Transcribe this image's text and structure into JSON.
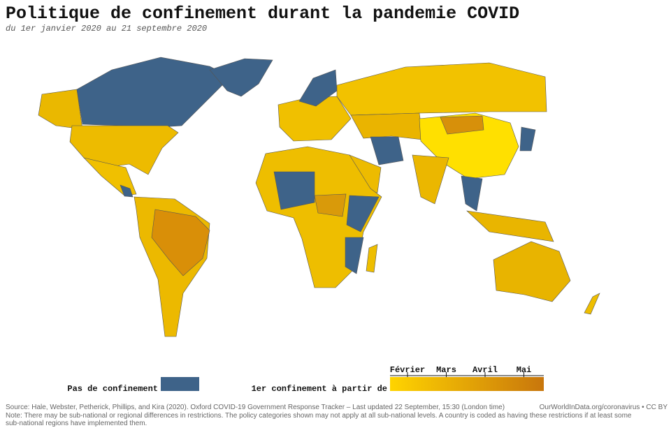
{
  "header": {
    "title": "Politique de confinement durant la pandemie COVID",
    "subtitle": "du 1er janvier 2020 au 21 septembre 2020"
  },
  "legend": {
    "no_lockdown": {
      "label": "Pas de confinement",
      "color": "#3e6389"
    },
    "first_lockdown": {
      "label": "1er confinement à partir de",
      "color_start": "#ffd400",
      "color_end": "#c8760c",
      "months": [
        "Février",
        "Mars",
        "Avril",
        "Mai"
      ]
    }
  },
  "footer": {
    "source": "Source: Hale, Webster, Petherick, Phillips, and Kira (2020). Oxford COVID-19 Government Response Tracker – Last updated 22 September, 15:30 (London time)",
    "credit": "OurWorldInData.org/coronavirus • CC BY",
    "note_1": "Note: There may be sub-national or regional differences in restrictions. The policy categories shown may not apply at all sub-national levels. A country is coded as having these restrictions if at least some",
    "note_2": "sub-national regions have implemented them."
  }
}
